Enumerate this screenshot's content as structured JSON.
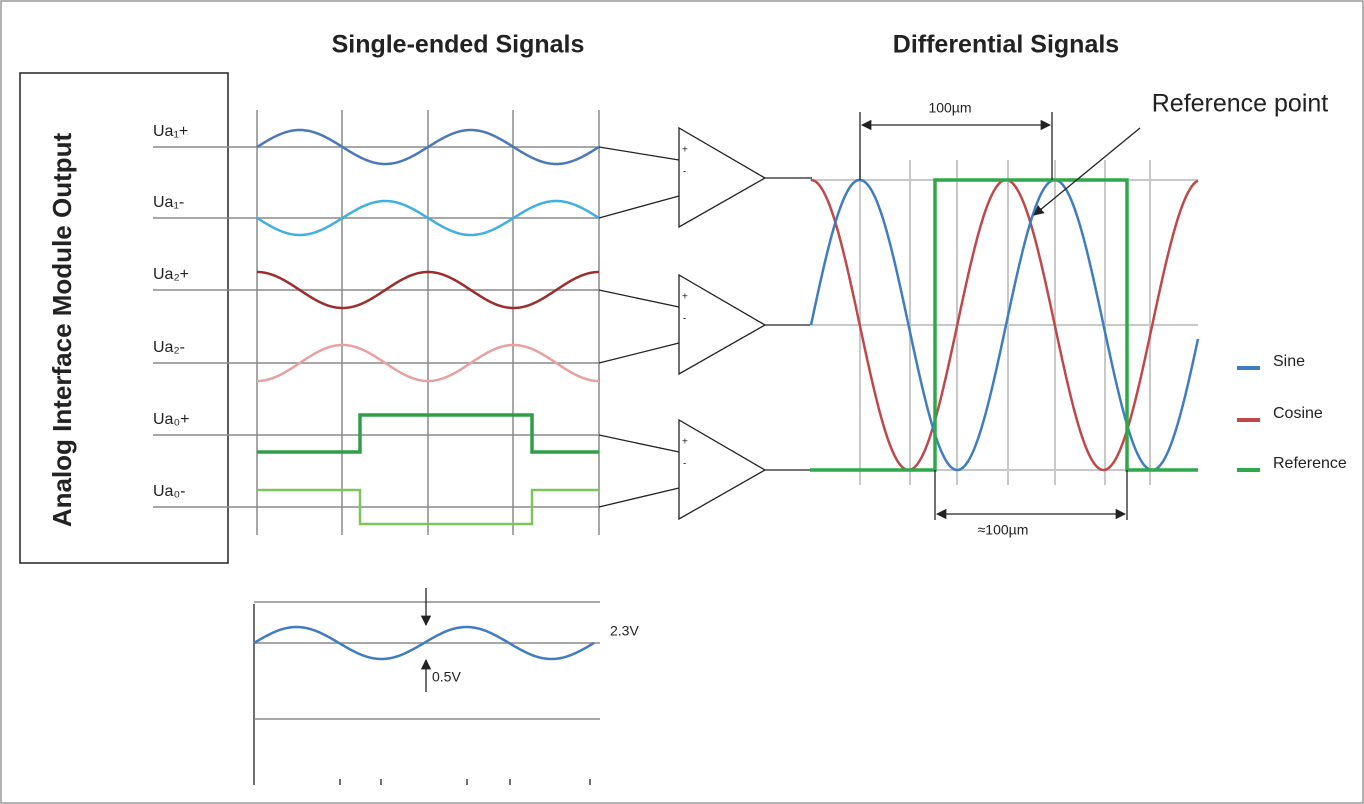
{
  "single_ended": {
    "title": "Single-ended Signals",
    "signals": [
      "Ua₁+",
      "Ua₁-",
      "Ua₂+",
      "Ua₂-",
      "Ua₀+",
      "Ua₀-"
    ]
  },
  "module": {
    "label": "Analog Interface Module Output"
  },
  "amplifier": {
    "plus": "+",
    "minus": "-"
  },
  "differential": {
    "title": "Differential Signals",
    "period_label": "100µm",
    "reference_width_label": "≈100µm",
    "reference_point": "Reference point",
    "legend": [
      "Sine",
      "Cosine",
      "Reference"
    ]
  },
  "amplitude": {
    "high_label": "2.3V",
    "low_label": "0.5V"
  }
}
